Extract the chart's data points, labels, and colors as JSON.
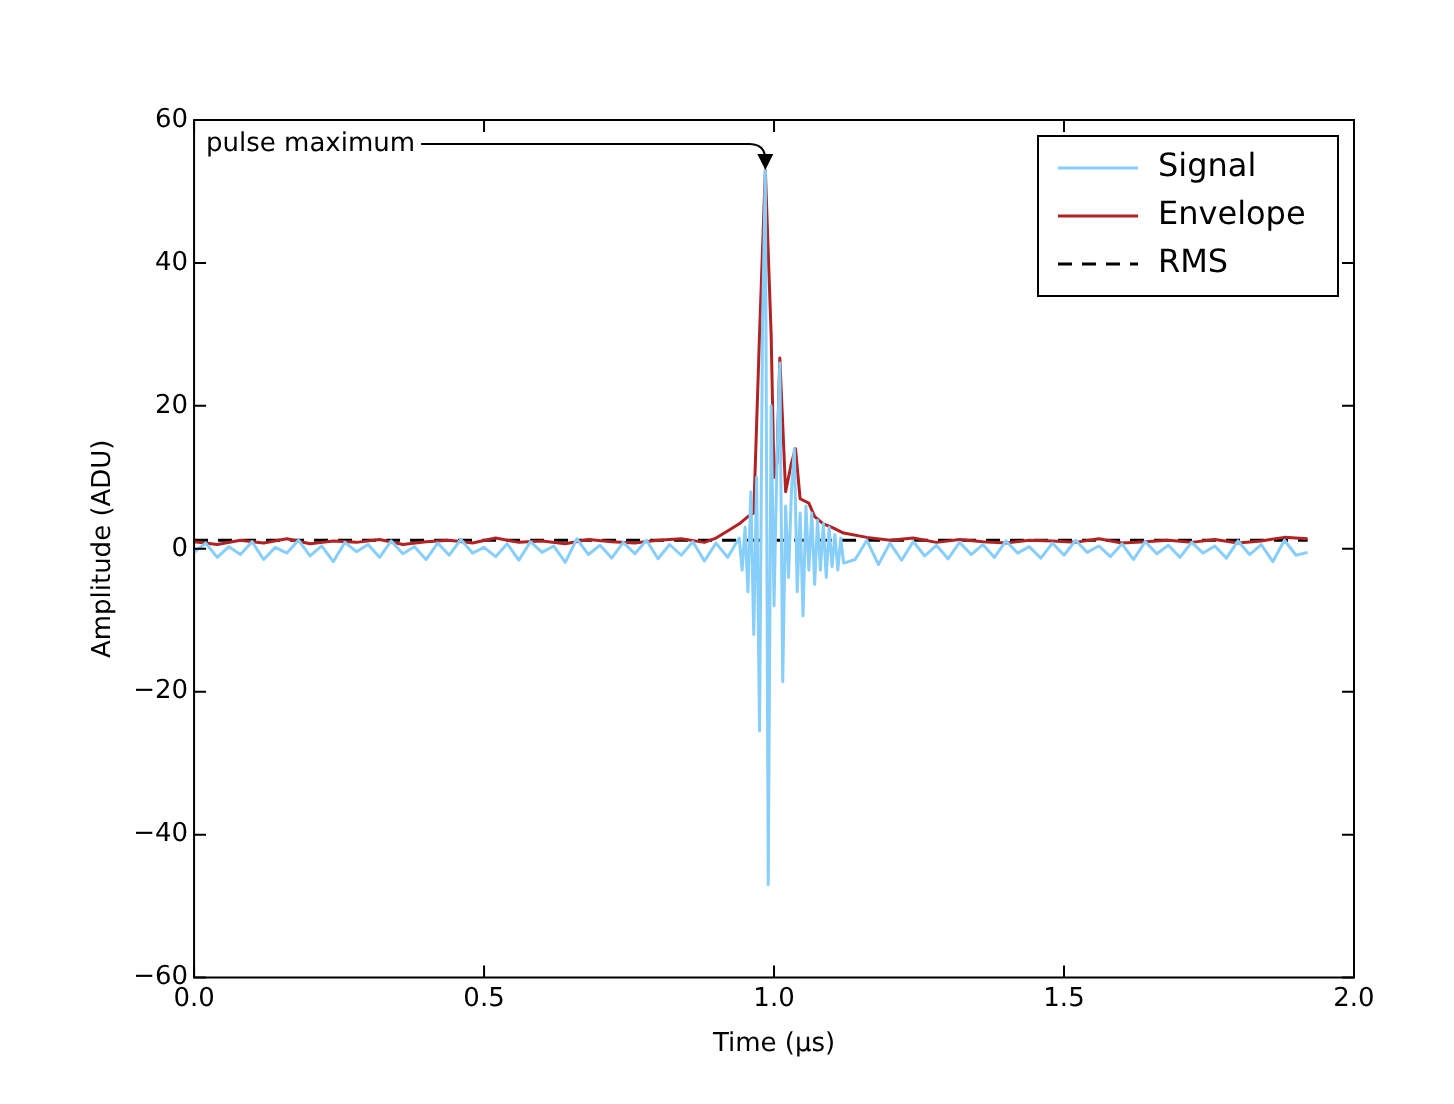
{
  "chart_data": {
    "type": "line",
    "xlabel": "Time (μs)",
    "ylabel": "Amplitude (ADU)",
    "xlim": [
      0,
      2
    ],
    "ylim": [
      -60,
      60
    ],
    "xticks": [
      {
        "value": 0,
        "label": "0.0"
      },
      {
        "value": 0.5,
        "label": "0.5"
      },
      {
        "value": 1,
        "label": "1.0"
      },
      {
        "value": 1.5,
        "label": "1.5"
      },
      {
        "value": 2,
        "label": "2.0"
      }
    ],
    "yticks": [
      {
        "value": -60,
        "label": "−60"
      },
      {
        "value": -40,
        "label": "−40"
      },
      {
        "value": -20,
        "label": "−20"
      },
      0,
      20,
      40,
      60
    ],
    "grid": false,
    "legend": "top right",
    "marker": "none",
    "line_style": "solid",
    "annotations": [
      {
        "text": "pulse maximum",
        "x": 0.985,
        "y": 53
      }
    ],
    "series": [
      {
        "name": "Signal",
        "color": "#87cefa",
        "x": [
          0,
          0.02,
          0.04,
          0.06,
          0.08,
          0.1,
          0.12,
          0.14,
          0.16,
          0.18,
          0.2,
          0.22,
          0.24,
          0.26,
          0.28,
          0.3,
          0.32,
          0.34,
          0.36,
          0.38,
          0.4,
          0.42,
          0.44,
          0.46,
          0.48,
          0.5,
          0.52,
          0.54,
          0.56,
          0.58,
          0.6,
          0.62,
          0.64,
          0.66,
          0.68,
          0.7,
          0.72,
          0.74,
          0.76,
          0.78,
          0.8,
          0.82,
          0.84,
          0.86,
          0.88,
          0.9,
          0.92,
          0.94,
          0.945,
          0.95,
          0.955,
          0.96,
          0.965,
          0.97,
          0.975,
          0.98,
          0.985,
          0.99,
          0.995,
          1,
          1.005,
          1.01,
          1.015,
          1.02,
          1.025,
          1.03,
          1.035,
          1.04,
          1.045,
          1.05,
          1.055,
          1.06,
          1.065,
          1.07,
          1.075,
          1.08,
          1.085,
          1.09,
          1.095,
          1.1,
          1.105,
          1.11,
          1.115,
          1.12,
          1.14,
          1.16,
          1.18,
          1.2,
          1.22,
          1.24,
          1.26,
          1.28,
          1.3,
          1.32,
          1.34,
          1.36,
          1.38,
          1.4,
          1.42,
          1.44,
          1.46,
          1.48,
          1.5,
          1.52,
          1.54,
          1.56,
          1.58,
          1.6,
          1.62,
          1.64,
          1.66,
          1.68,
          1.7,
          1.72,
          1.74,
          1.76,
          1.78,
          1.8,
          1.82,
          1.84,
          1.86,
          1.88,
          1.9,
          1.92
        ],
        "values": [
          -0.5,
          0.8,
          -1.2,
          0.3,
          -0.8,
          1.0,
          -1.5,
          0.2,
          -0.6,
          1.2,
          -1.0,
          0.4,
          -1.8,
          0.9,
          -0.4,
          0.6,
          -1.2,
          1.1,
          -0.7,
          0.3,
          -1.5,
          0.8,
          -0.9,
          1.3,
          -0.6,
          0.2,
          -1.1,
          0.7,
          -1.6,
          1.0,
          -0.5,
          0.4,
          -1.9,
          1.4,
          -0.8,
          0.5,
          -1.3,
          0.9,
          -0.7,
          1.2,
          -1.4,
          0.6,
          -0.9,
          1.0,
          -1.7,
          0.8,
          -1.2,
          1.5,
          -3,
          3,
          -6,
          8,
          -12,
          10,
          -25.5,
          30,
          53,
          -47,
          20,
          -8,
          12,
          26,
          -18.6,
          6,
          -4,
          8,
          14,
          -6,
          5,
          -9.4,
          6,
          -3,
          5,
          -5,
          4,
          -3,
          3.5,
          -4,
          3,
          -2.5,
          2,
          -3,
          1.5,
          -2,
          -1.5,
          1.2,
          -2.2,
          0.8,
          -1.6,
          1.0,
          -1.0,
          0.5,
          -1.4,
          0.9,
          -0.8,
          0.6,
          -1.2,
          1.1,
          -0.6,
          0.3,
          -1.3,
          0.8,
          -0.9,
          1.2,
          -0.5,
          0.4,
          -1.1,
          0.7,
          -1.5,
          1.0,
          -0.7,
          0.5,
          -1.2,
          0.9,
          -0.6,
          0.4,
          -1.3,
          1.1,
          -0.8,
          0.6,
          -1.8,
          1.2,
          -0.9,
          -0.5
        ]
      },
      {
        "name": "Envelope",
        "color": "#b22222",
        "x": [
          0,
          0.04,
          0.08,
          0.12,
          0.16,
          0.2,
          0.24,
          0.28,
          0.32,
          0.36,
          0.4,
          0.44,
          0.48,
          0.52,
          0.56,
          0.6,
          0.64,
          0.68,
          0.72,
          0.76,
          0.8,
          0.84,
          0.88,
          0.9,
          0.92,
          0.94,
          0.955,
          0.965,
          0.975,
          0.985,
          0.995,
          1,
          1.005,
          1.01,
          1.02,
          1.03,
          1.037,
          1.045,
          1.06,
          1.07,
          1.085,
          1.1,
          1.12,
          1.16,
          1.2,
          1.24,
          1.28,
          1.32,
          1.36,
          1.4,
          1.44,
          1.48,
          1.52,
          1.56,
          1.6,
          1.64,
          1.68,
          1.72,
          1.76,
          1.8,
          1.84,
          1.88,
          1.92
        ],
        "values": [
          1.0,
          0.6,
          1.2,
          0.8,
          1.4,
          0.7,
          1.1,
          0.9,
          1.3,
          0.6,
          1.0,
          1.2,
          0.8,
          1.5,
          0.9,
          1.1,
          0.7,
          1.3,
          1.0,
          0.8,
          1.2,
          1.4,
          0.9,
          1.5,
          2.5,
          3.5,
          4.5,
          5,
          30,
          53,
          30,
          10,
          12,
          26.7,
          8,
          12,
          14,
          7,
          6.4,
          4.5,
          3.5,
          3,
          2.2,
          1.6,
          1.2,
          1.5,
          0.9,
          1.3,
          1.0,
          0.8,
          1.2,
          1.1,
          0.9,
          1.4,
          0.8,
          1.0,
          1.2,
          0.9,
          1.3,
          0.8,
          1.1,
          1.6,
          1.4
        ]
      },
      {
        "name": "RMS",
        "color": "#000000",
        "line_style": "dashed",
        "x": [
          0,
          1.92
        ],
        "values": [
          1.2,
          1.2
        ]
      }
    ]
  }
}
